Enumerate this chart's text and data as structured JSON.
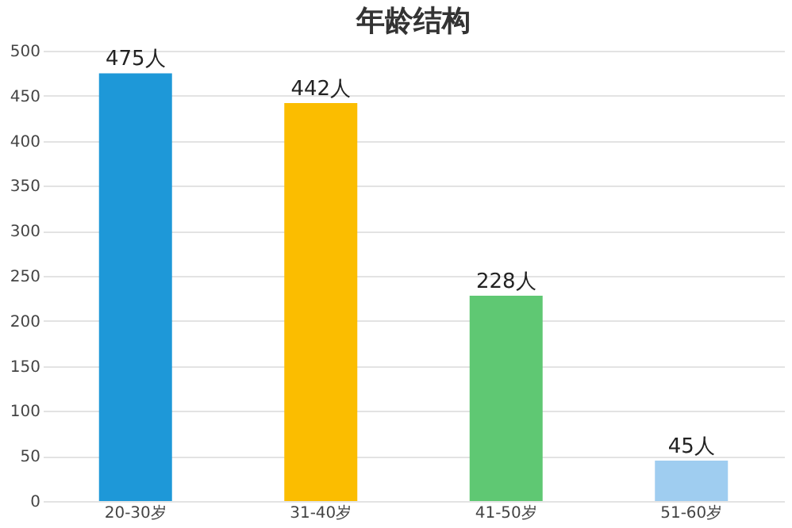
{
  "chart_data": {
    "type": "bar",
    "title": "年龄结构",
    "categories": [
      "20-30岁",
      "31-40岁",
      "41-50岁",
      "51-60岁"
    ],
    "values": [
      475,
      442,
      228,
      45
    ],
    "colors": [
      "#1e98d8",
      "#fbbd00",
      "#5fc873",
      "#9fcdf0"
    ],
    "value_labels": [
      "475人",
      "442人",
      "228人",
      "45人"
    ],
    "ylim": [
      0,
      500
    ],
    "yticks": [
      0,
      50,
      100,
      150,
      200,
      250,
      300,
      350,
      400,
      450,
      500
    ],
    "grid": "y"
  }
}
